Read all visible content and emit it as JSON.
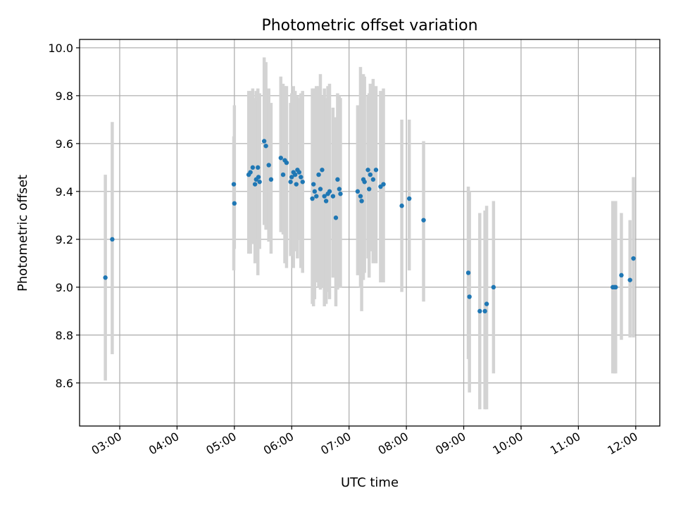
{
  "chart_data": {
    "type": "scatter",
    "title": "Photometric offset variation",
    "xlabel": "UTC time",
    "ylabel": "Photometric offset",
    "x_unit": "hours UTC",
    "xlim": [
      2.3,
      12.42
    ],
    "ylim": [
      8.42,
      10.035
    ],
    "grid": true,
    "x_ticks": [
      3,
      4,
      5,
      6,
      7,
      8,
      9,
      10,
      11,
      12
    ],
    "x_tick_labels": [
      "03:00",
      "04:00",
      "05:00",
      "06:00",
      "07:00",
      "08:00",
      "09:00",
      "10:00",
      "11:00",
      "12:00"
    ],
    "y_ticks": [
      8.6,
      8.8,
      9.0,
      9.2,
      9.4,
      9.6,
      9.8,
      10.0
    ],
    "y_tick_labels": [
      "8.6",
      "8.8",
      "9.0",
      "9.2",
      "9.4",
      "9.6",
      "9.8",
      "10.0"
    ],
    "colors": {
      "points": "#1f77b4",
      "error_bars": "#d3d3d3",
      "grid": "#b0b0b0"
    },
    "series": [
      {
        "x": [
          2.75,
          2.87,
          4.99,
          5.0,
          5.25,
          5.28,
          5.32,
          5.36,
          5.38,
          5.41,
          5.42,
          5.44,
          5.52,
          5.55,
          5.6,
          5.64,
          5.81,
          5.85,
          5.88,
          5.91,
          5.98,
          6.0,
          6.03,
          6.06,
          6.08,
          6.1,
          6.13,
          6.16,
          6.19,
          6.36,
          6.38,
          6.4,
          6.43,
          6.47,
          6.5,
          6.53,
          6.57,
          6.6,
          6.63,
          6.66,
          6.72,
          6.77,
          6.8,
          6.83,
          6.85,
          7.15,
          7.2,
          7.22,
          7.25,
          7.27,
          7.33,
          7.35,
          7.37,
          7.42,
          7.47,
          7.55,
          7.6,
          7.92,
          8.05,
          8.3,
          9.08,
          9.1,
          9.28,
          9.37,
          9.4,
          9.52,
          11.6,
          11.63,
          11.65,
          11.75,
          11.9,
          11.96
        ],
        "y": [
          9.04,
          9.2,
          9.43,
          9.35,
          9.47,
          9.48,
          9.5,
          9.43,
          9.45,
          9.5,
          9.46,
          9.44,
          9.61,
          9.59,
          9.51,
          9.45,
          9.54,
          9.47,
          9.53,
          9.52,
          9.44,
          9.46,
          9.48,
          9.47,
          9.43,
          9.49,
          9.48,
          9.46,
          9.44,
          9.37,
          9.43,
          9.4,
          9.38,
          9.47,
          9.41,
          9.49,
          9.38,
          9.36,
          9.39,
          9.4,
          9.38,
          9.29,
          9.45,
          9.41,
          9.39,
          9.4,
          9.38,
          9.36,
          9.45,
          9.44,
          9.49,
          9.41,
          9.47,
          9.45,
          9.49,
          9.42,
          9.43,
          9.34,
          9.37,
          9.28,
          9.06,
          8.96,
          8.9,
          8.9,
          8.93,
          9.0,
          9.0,
          9.0,
          9.0,
          9.05,
          9.03,
          9.12
        ],
        "err_low": [
          8.61,
          8.72,
          9.07,
          9.16,
          9.14,
          9.14,
          9.18,
          9.1,
          9.12,
          9.05,
          9.2,
          9.16,
          9.26,
          9.24,
          9.19,
          9.14,
          9.23,
          9.22,
          9.1,
          9.08,
          9.13,
          9.14,
          9.08,
          9.15,
          9.2,
          9.12,
          9.2,
          9.08,
          9.06,
          8.93,
          8.92,
          8.95,
          9.02,
          9.0,
          8.99,
          9.0,
          8.92,
          8.93,
          8.98,
          8.95,
          9.04,
          8.92,
          8.99,
          9.0,
          9.0,
          9.05,
          9.0,
          8.9,
          9.03,
          9.06,
          9.12,
          9.04,
          9.15,
          9.1,
          9.1,
          9.02,
          9.02,
          8.98,
          9.07,
          8.94,
          8.7,
          8.56,
          8.49,
          8.49,
          8.49,
          8.64,
          8.64,
          8.64,
          8.64,
          8.78,
          8.79,
          8.79
        ],
        "err_high": [
          9.47,
          9.69,
          9.63,
          9.76,
          9.82,
          9.82,
          9.83,
          9.79,
          9.82,
          9.83,
          9.78,
          9.81,
          9.96,
          9.94,
          9.83,
          9.77,
          9.88,
          9.85,
          9.84,
          9.84,
          9.77,
          9.81,
          9.84,
          9.82,
          9.78,
          9.8,
          9.79,
          9.81,
          9.82,
          9.83,
          9.83,
          9.83,
          9.84,
          9.84,
          9.89,
          9.8,
          9.83,
          9.79,
          9.84,
          9.85,
          9.75,
          9.71,
          9.81,
          9.8,
          9.79,
          9.76,
          9.92,
          9.85,
          9.89,
          9.88,
          9.8,
          9.81,
          9.85,
          9.87,
          9.84,
          9.82,
          9.83,
          9.7,
          9.7,
          9.61,
          9.42,
          9.4,
          9.31,
          9.32,
          9.34,
          9.36,
          9.36,
          9.36,
          9.36,
          9.31,
          9.28,
          9.46
        ]
      }
    ]
  }
}
